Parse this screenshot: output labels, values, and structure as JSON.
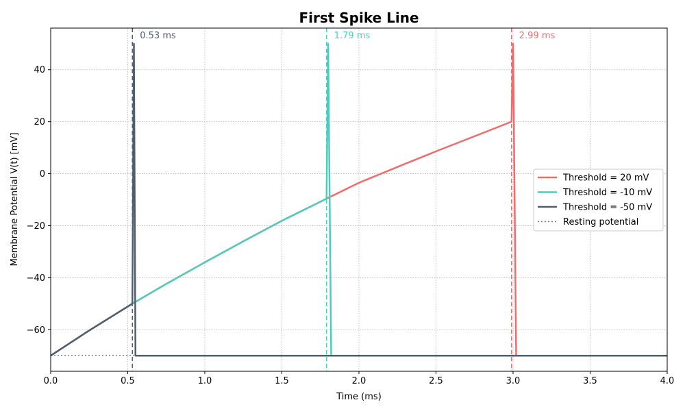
{
  "chart_data": {
    "type": "line",
    "title": "First Spike Line",
    "xlabel": "Time (ms)",
    "ylabel": "Membrane Potential V(t) [mV]",
    "xlim": [
      0,
      4
    ],
    "ylim": [
      -76,
      56
    ],
    "x_ticks": [
      0.0,
      0.5,
      1.0,
      1.5,
      2.0,
      2.5,
      3.0,
      3.5,
      4.0
    ],
    "x_tick_labels": [
      "0.0",
      "0.5",
      "1.0",
      "1.5",
      "2.0",
      "2.5",
      "3.0",
      "3.5",
      "4.0"
    ],
    "y_ticks": [
      -60,
      -40,
      -20,
      0,
      20,
      40
    ],
    "y_tick_labels": [
      "−60",
      "−40",
      "−20",
      "0",
      "20",
      "40"
    ],
    "grid": true,
    "legend_position": "center-right",
    "resting_potential": -70,
    "series": [
      {
        "name": "Threshold = 20 mV",
        "color": "#f26b6b",
        "threshold": 20,
        "spike_time": 2.99,
        "spike_label": "2.99 ms",
        "x": [
          0,
          0.25,
          0.53,
          0.75,
          1.0,
          1.25,
          1.5,
          1.79,
          2.0,
          2.25,
          2.5,
          2.75,
          2.99,
          3.0,
          3.02,
          4.0
        ],
        "y": [
          -70,
          -60.3,
          -50,
          -42.4,
          -34.1,
          -26.0,
          -18.1,
          -9.6,
          -3.5,
          2.6,
          8.6,
          14.4,
          20,
          50,
          -70,
          -70
        ]
      },
      {
        "name": "Threshold = -10 mV",
        "color": "#4ecbbf",
        "threshold": -10,
        "spike_time": 1.79,
        "spike_label": "1.79 ms",
        "x": [
          0,
          0.25,
          0.53,
          0.75,
          1.0,
          1.25,
          1.5,
          1.79,
          1.8,
          1.82,
          4.0
        ],
        "y": [
          -70,
          -60.3,
          -50,
          -42.4,
          -34.1,
          -26.0,
          -18.1,
          -9.6,
          50,
          -70,
          -70
        ]
      },
      {
        "name": "Threshold = -50 mV",
        "color": "#4f5d6e",
        "threshold": -50,
        "spike_time": 0.53,
        "spike_label": "0.53 ms",
        "x": [
          0,
          0.25,
          0.53,
          0.54,
          0.55,
          4.0
        ],
        "y": [
          -70,
          -60.3,
          -50,
          50,
          -70,
          -70
        ]
      }
    ],
    "resting_series": {
      "name": "Resting potential",
      "color": "#777777",
      "value": -70
    }
  }
}
